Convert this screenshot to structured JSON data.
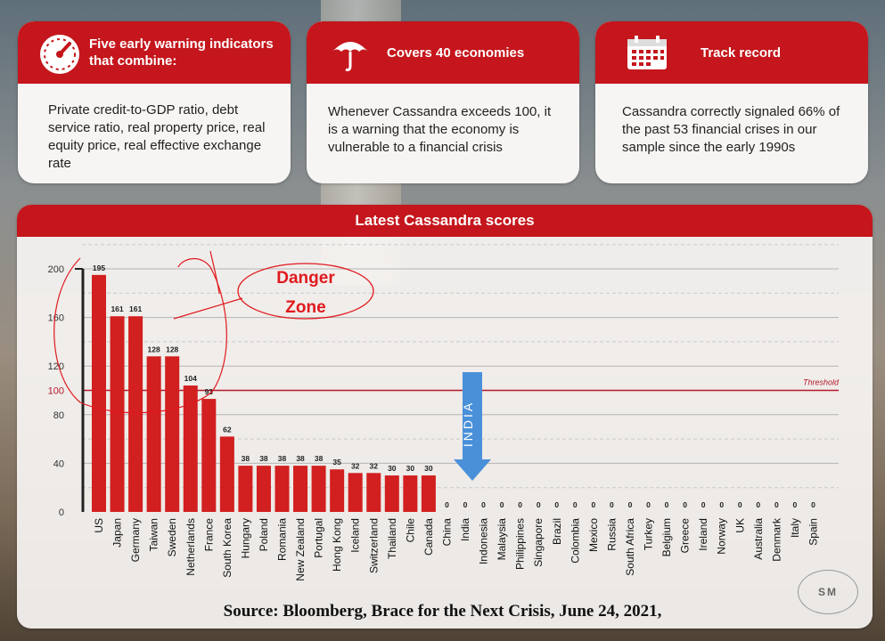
{
  "cards": [
    {
      "title": "Five early warning indicators that combine:",
      "body": "Private credit-to-GDP ratio, debt service ratio, real property price, real equity price, real effective exchange rate",
      "icon": "gauge-icon"
    },
    {
      "title": "Covers 40 economies",
      "body": "Whenever Cassandra exceeds 100, it is a warning that the economy is vulnerable to a financial crisis",
      "icon": "umbrella-icon"
    },
    {
      "title": "Track record",
      "body": "Cassandra correctly signaled 66% of the past 53 financial crises in our sample since the early 1990s",
      "icon": "calendar-icon"
    }
  ],
  "chart_data": {
    "type": "bar",
    "title": "Latest Cassandra scores",
    "categories": [
      "US",
      "Japan",
      "Germany",
      "Taiwan",
      "Sweden",
      "Netherlands",
      "France",
      "South Korea",
      "Hungary",
      "Poland",
      "Romania",
      "New Zealand",
      "Portugal",
      "Hong Kong",
      "Iceland",
      "Switzerland",
      "Thailand",
      "Chile",
      "Canada",
      "China",
      "India",
      "Indonesia",
      "Malaysia",
      "Philippines",
      "Singapore",
      "Brazil",
      "Colombia",
      "Mexico",
      "Russia",
      "South Africa",
      "Turkey",
      "Belgium",
      "Greece",
      "Ireland",
      "Norway",
      "UK",
      "Australia",
      "Denmark",
      "Italy",
      "Spain"
    ],
    "values": [
      195,
      161,
      161,
      128,
      128,
      104,
      93,
      62,
      38,
      38,
      38,
      38,
      38,
      35,
      32,
      32,
      30,
      30,
      30,
      0,
      0,
      0,
      0,
      0,
      0,
      0,
      0,
      0,
      0,
      0,
      0,
      0,
      0,
      0,
      0,
      0,
      0,
      0,
      0,
      0
    ],
    "yticks": [
      0,
      40,
      80,
      100,
      120,
      160,
      200
    ],
    "ylim": [
      0,
      200
    ],
    "threshold": {
      "value": 100,
      "label": "Threshold"
    },
    "bar_color": "#d21f1f",
    "threshold_color": "#b5182b"
  },
  "annotations": {
    "danger_zone": "Danger Zone",
    "india": "INDIA",
    "annotation_color": "#e0191e",
    "arrow_color": "#4a90d9"
  },
  "source": "Source: Bloomberg, Brace for the Next Crisis, June 24, 2021,",
  "badge": "SM"
}
